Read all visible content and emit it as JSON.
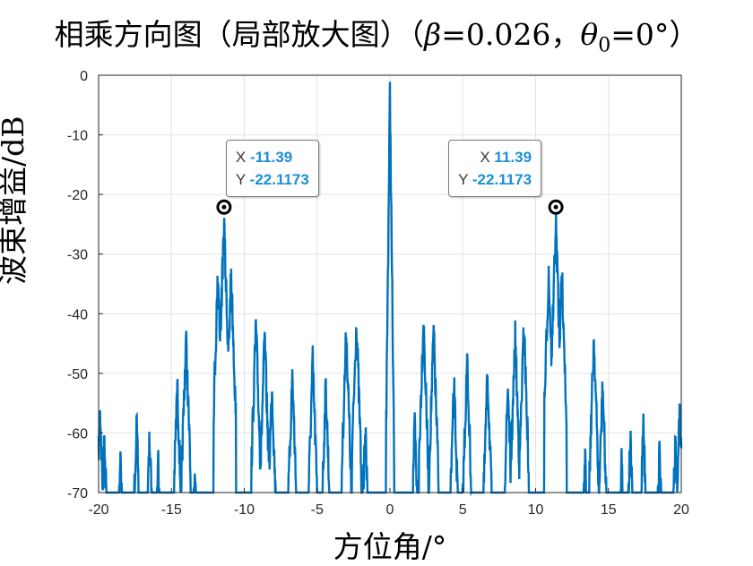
{
  "chart_data": {
    "type": "line",
    "title_prefix": "相乘方向图（局部放大图）（",
    "title_beta_symbol": "β",
    "title_beta_value": "=0.026，",
    "title_theta_symbol": "θ",
    "title_theta_sub": "0",
    "title_theta_value": "=0°）",
    "xlabel": "方位角/°",
    "ylabel": "波束增益/dB",
    "xlim": [
      -20,
      20
    ],
    "ylim": [
      -70,
      0
    ],
    "xticks": [
      -20,
      -15,
      -10,
      -5,
      0,
      5,
      10,
      15,
      20
    ],
    "yticks": [
      0,
      -10,
      -20,
      -30,
      -40,
      -50,
      -60,
      -70
    ],
    "grid": true,
    "series_color": "#0072BD",
    "sidelobe_peaks": [
      {
        "x": -19.9,
        "y": -53
      },
      {
        "x": -19.6,
        "y": -58
      },
      {
        "x": -18.5,
        "y": -60
      },
      {
        "x": -17.4,
        "y": -55.5
      },
      {
        "x": -16.5,
        "y": -58
      },
      {
        "x": -15.9,
        "y": -61
      },
      {
        "x": -14.6,
        "y": -49
      },
      {
        "x": -14.0,
        "y": -41
      },
      {
        "x": -13.4,
        "y": -62
      },
      {
        "x": -11.8,
        "y": -30
      },
      {
        "x": -11.39,
        "y": -22.1173
      },
      {
        "x": -10.9,
        "y": -30
      },
      {
        "x": -9.2,
        "y": -39
      },
      {
        "x": -8.6,
        "y": -41
      },
      {
        "x": -8.1,
        "y": -49
      },
      {
        "x": -6.7,
        "y": -47
      },
      {
        "x": -5.3,
        "y": -45
      },
      {
        "x": -4.4,
        "y": -49
      },
      {
        "x": -3.0,
        "y": -40
      },
      {
        "x": -2.3,
        "y": -38
      },
      {
        "x": -1.7,
        "y": -56
      },
      {
        "x": 0.0,
        "y": 0
      },
      {
        "x": 1.7,
        "y": -56
      },
      {
        "x": 2.3,
        "y": -38
      },
      {
        "x": 3.0,
        "y": -40
      },
      {
        "x": 4.4,
        "y": -49
      },
      {
        "x": 5.3,
        "y": -45
      },
      {
        "x": 6.7,
        "y": -47
      },
      {
        "x": 8.1,
        "y": -49
      },
      {
        "x": 8.6,
        "y": -41
      },
      {
        "x": 9.2,
        "y": -39
      },
      {
        "x": 10.9,
        "y": -30
      },
      {
        "x": 11.39,
        "y": -22.1173
      },
      {
        "x": 11.8,
        "y": -30
      },
      {
        "x": 13.4,
        "y": -62
      },
      {
        "x": 14.0,
        "y": -41
      },
      {
        "x": 14.6,
        "y": -49
      },
      {
        "x": 15.9,
        "y": -61
      },
      {
        "x": 16.5,
        "y": -58
      },
      {
        "x": 17.4,
        "y": -55.5
      },
      {
        "x": 18.5,
        "y": -60
      },
      {
        "x": 19.6,
        "y": -58
      },
      {
        "x": 19.9,
        "y": -53
      }
    ],
    "datatips": [
      {
        "x_label": "X",
        "x_value": "-11.39",
        "y_label": "Y",
        "y_value": "-22.1173",
        "x": -11.39,
        "y": -22.1173
      },
      {
        "x_label": "X",
        "x_value": "11.39",
        "y_label": "Y",
        "y_value": "-22.1173",
        "x": 11.39,
        "y": -22.1173
      }
    ]
  }
}
